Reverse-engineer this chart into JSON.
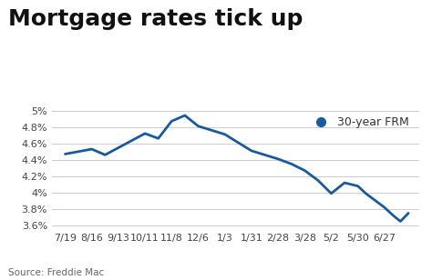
{
  "title": "Mortgage rates tick up",
  "legend_label": "30-year FRM",
  "source_text": "Source: Freddie Mac",
  "line_color": "#1a5a9a",
  "marker_color": "#1a5a9a",
  "background_color": "#ffffff",
  "grid_color": "#cccccc",
  "x_labels": [
    "7/19",
    "8/16",
    "9/13",
    "10/11",
    "11/8",
    "12/6",
    "1/3",
    "1/31",
    "2/28",
    "3/28",
    "5/2",
    "5/30",
    "6/27"
  ],
  "y_values": [
    0.0447,
    0.0453,
    0.0446,
    0.0472,
    0.0466,
    0.0487,
    0.0494,
    0.0481,
    0.0471,
    0.0451,
    0.0441,
    0.0435,
    0.0427,
    0.0415,
    0.0399,
    0.0412,
    0.0408,
    0.0399,
    0.0382,
    0.0373,
    0.0365,
    0.0375
  ],
  "x_values": [
    0,
    1,
    1.5,
    3,
    3.5,
    4,
    4.5,
    5,
    6,
    7,
    8,
    8.5,
    9,
    9.5,
    10,
    10.5,
    11,
    11.3,
    12,
    12.3,
    12.6,
    12.9
  ],
  "ylim": [
    0.0355,
    0.0505
  ],
  "yticks": [
    0.036,
    0.038,
    0.04,
    0.042,
    0.044,
    0.046,
    0.048,
    0.05
  ],
  "ytick_labels": [
    "3.6%",
    "3.8%",
    "4%",
    "4.2%",
    "4.4%",
    "4.6%",
    "4.8%",
    "5%"
  ],
  "title_fontsize": 18,
  "axis_fontsize": 8,
  "legend_fontsize": 9,
  "source_fontsize": 7.5
}
